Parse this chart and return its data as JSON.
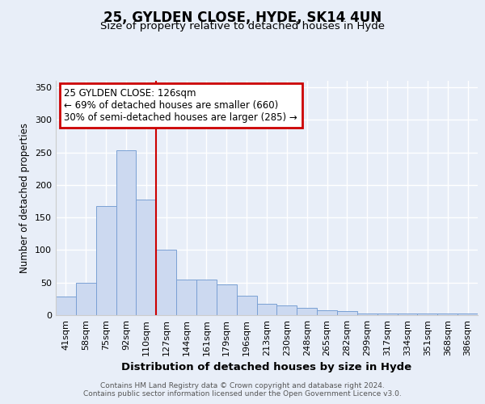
{
  "title1": "25, GYLDEN CLOSE, HYDE, SK14 4UN",
  "title2": "Size of property relative to detached houses in Hyde",
  "xlabel": "Distribution of detached houses by size in Hyde",
  "ylabel": "Number of detached properties",
  "bins": [
    "41sqm",
    "58sqm",
    "75sqm",
    "92sqm",
    "110sqm",
    "127sqm",
    "144sqm",
    "161sqm",
    "179sqm",
    "196sqm",
    "213sqm",
    "230sqm",
    "248sqm",
    "265sqm",
    "282sqm",
    "299sqm",
    "317sqm",
    "334sqm",
    "351sqm",
    "368sqm",
    "386sqm"
  ],
  "values": [
    28,
    50,
    168,
    253,
    178,
    101,
    55,
    55,
    47,
    30,
    17,
    15,
    11,
    8,
    6,
    2,
    3,
    3,
    3,
    3,
    3
  ],
  "bar_color": "#ccd9f0",
  "bar_edge_color": "#7aa0d4",
  "property_line_color": "#cc0000",
  "property_line_index": 5,
  "annotation_text": "25 GYLDEN CLOSE: 126sqm\n← 69% of detached houses are smaller (660)\n30% of semi-detached houses are larger (285) →",
  "annotation_box_color": "white",
  "annotation_box_edge_color": "#cc0000",
  "ylim": [
    0,
    360
  ],
  "yticks": [
    0,
    50,
    100,
    150,
    200,
    250,
    300,
    350
  ],
  "footer_text": "Contains HM Land Registry data © Crown copyright and database right 2024.\nContains public sector information licensed under the Open Government Licence v3.0.",
  "background_color": "#e8eef8",
  "plot_background_color": "#e8eef8",
  "grid_color": "white"
}
